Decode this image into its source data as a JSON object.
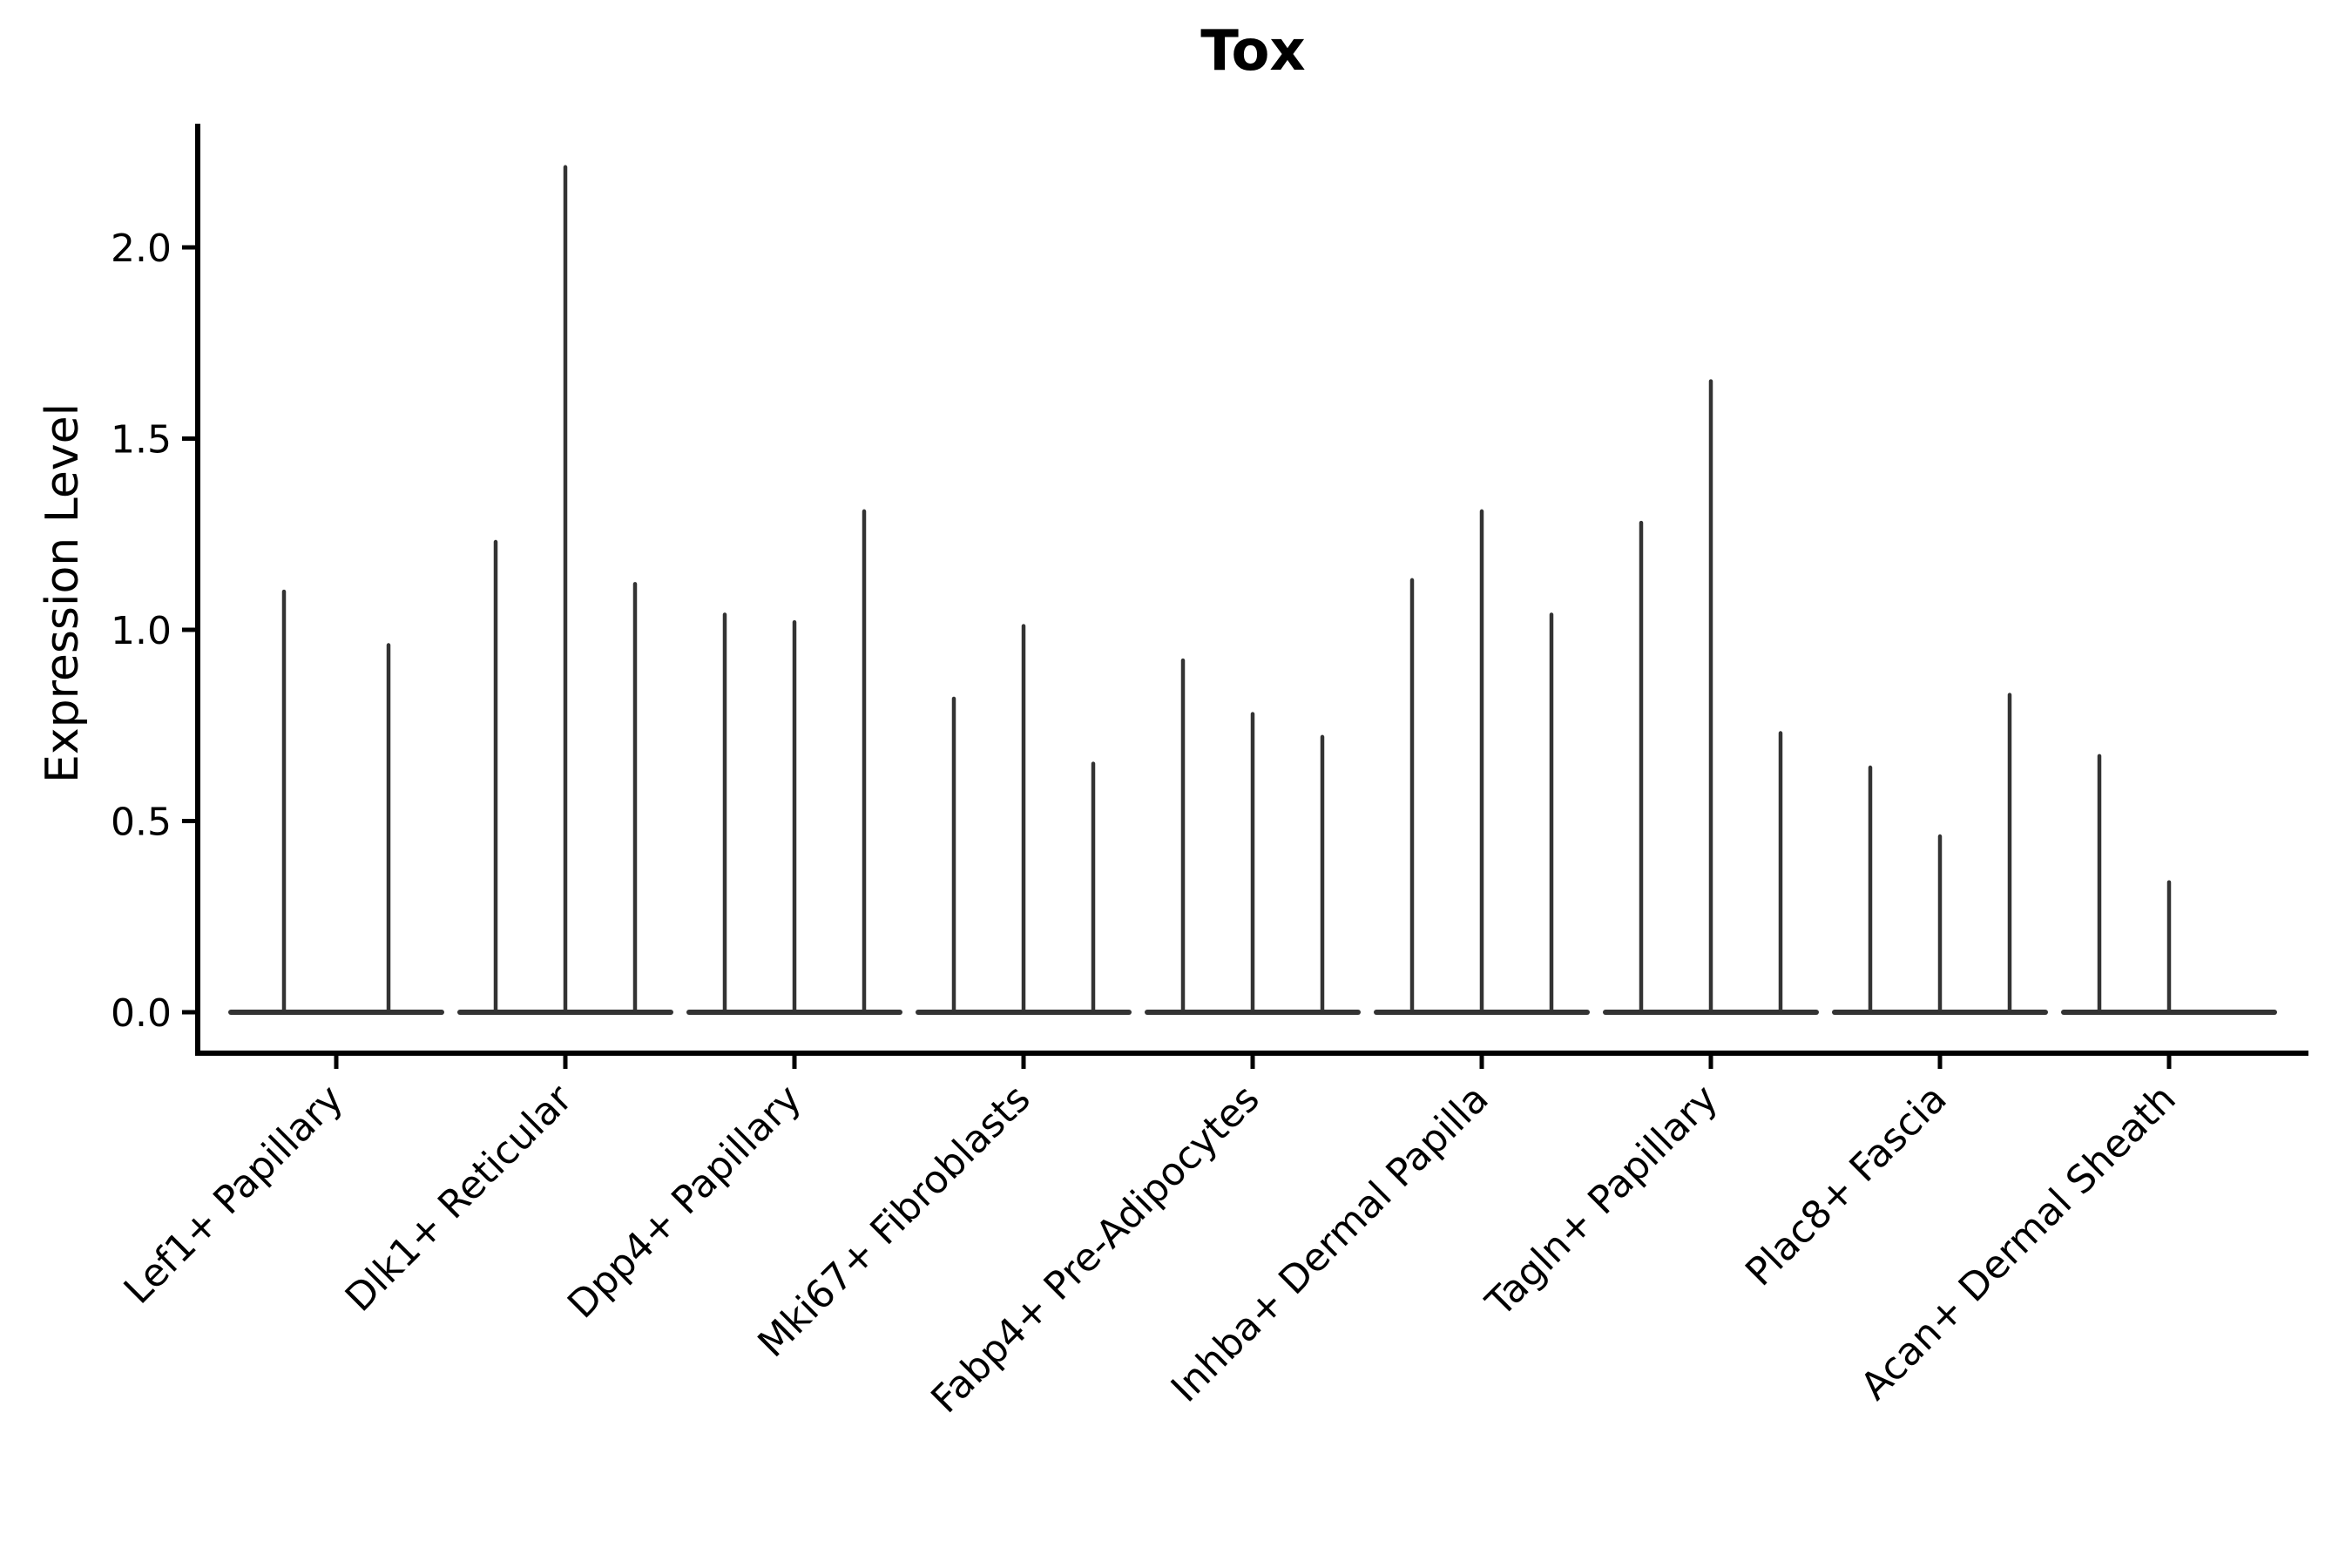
{
  "chart_data": {
    "type": "violin",
    "title": "Tox",
    "ylabel": "Expression Level",
    "xlabel": "",
    "grid": false,
    "legend": "none",
    "ylim": [
      -0.11,
      2.43
    ],
    "ytick_labels": [
      "0.0",
      "0.5",
      "1.0",
      "1.5",
      "2.0"
    ],
    "description": "Violin plot of Tox expression per fibroblast cluster; violins collapse to thin spikes (most cells at 0), each category shows 2-3 sub-violin spikes whose tips mark the maximum expression level",
    "categories": [
      {
        "label": "Lef1+ Papillary",
        "spikes": [
          {
            "offset": -60,
            "max": 1.1
          },
          {
            "offset": 60,
            "max": 0.96
          }
        ]
      },
      {
        "label": "Dlk1+ Reticular",
        "spikes": [
          {
            "offset": -80,
            "max": 1.23
          },
          {
            "offset": 0,
            "max": 2.21
          },
          {
            "offset": 80,
            "max": 1.12
          }
        ]
      },
      {
        "label": "Dpp4+ Papillary",
        "spikes": [
          {
            "offset": -80,
            "max": 1.04
          },
          {
            "offset": 0,
            "max": 1.02
          },
          {
            "offset": 80,
            "max": 1.31
          }
        ]
      },
      {
        "label": "Mki67+ Fibroblasts",
        "spikes": [
          {
            "offset": -80,
            "max": 0.82
          },
          {
            "offset": 0,
            "max": 1.01
          },
          {
            "offset": 80,
            "max": 0.65
          }
        ]
      },
      {
        "label": "Fabp4+ Pre-Adipocytes",
        "spikes": [
          {
            "offset": -80,
            "max": 0.92
          },
          {
            "offset": 0,
            "max": 0.78
          },
          {
            "offset": 80,
            "max": 0.72
          }
        ]
      },
      {
        "label": "Inhba+ Dermal Papilla",
        "spikes": [
          {
            "offset": -80,
            "max": 1.13
          },
          {
            "offset": 0,
            "max": 1.31
          },
          {
            "offset": 80,
            "max": 1.04
          }
        ]
      },
      {
        "label": "Tagln+ Papillary",
        "spikes": [
          {
            "offset": -80,
            "max": 1.28
          },
          {
            "offset": 0,
            "max": 1.65
          },
          {
            "offset": 80,
            "max": 0.73
          }
        ]
      },
      {
        "label": "Plac8+ Fascia",
        "spikes": [
          {
            "offset": -80,
            "max": 0.64
          },
          {
            "offset": 0,
            "max": 0.46
          },
          {
            "offset": 80,
            "max": 0.83
          }
        ]
      },
      {
        "label": "Acan+ Dermal Sheath",
        "spikes": [
          {
            "offset": -80,
            "max": 0.67
          },
          {
            "offset": 0,
            "max": 0.34
          }
        ]
      }
    ],
    "colors": {
      "violin_stroke": "#333333",
      "axis": "#000000",
      "text": "#000000",
      "background": "#ffffff"
    }
  }
}
